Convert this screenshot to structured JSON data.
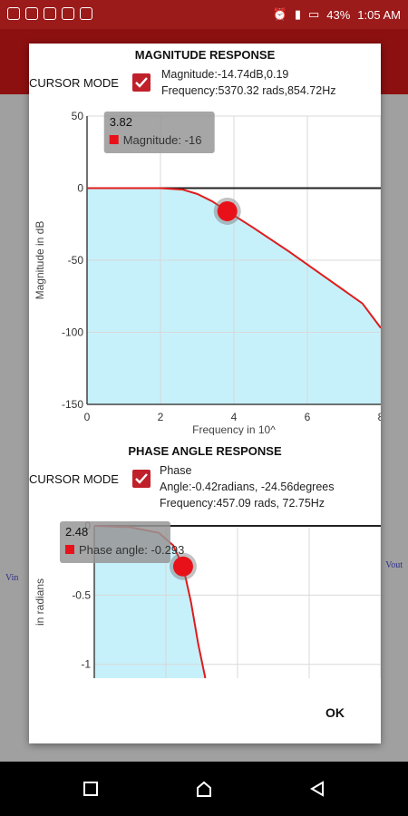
{
  "status_bar": {
    "battery": "43%",
    "time": "1:05 AM"
  },
  "dialog": {
    "magnitude": {
      "title": "MAGNITUDE RESPONSE",
      "cursor_mode_label": "CURSOR MODE",
      "cursor_mode_checked": true,
      "readout_line1": "Magnitude:-14.74dB,0.19",
      "readout_line2": "Frequency:5370.32 rads,854.72Hz",
      "tooltip_title": "3.82",
      "tooltip_value": "Magnitude: -16"
    },
    "phase": {
      "title": "PHASE ANGLE RESPONSE",
      "cursor_mode_label": "CURSOR MODE",
      "cursor_mode_checked": true,
      "readout_line1": "Phase",
      "readout_line2": "Angle:-0.42radians, -24.56degrees",
      "readout_line3": "Frequency:457.09 rads,  72.75Hz",
      "tooltip_title": "2.48",
      "tooltip_value": "Phase angle: -0.293"
    },
    "ok_label": "OK"
  },
  "background": {
    "vin_label": "Vin",
    "vout_label": "Vout"
  },
  "chart_data": [
    {
      "type": "area",
      "xlabel": "Frequency in 10^",
      "ylabel": "Magnitude in dB",
      "xlim": [
        0,
        8
      ],
      "ylim": [
        -150,
        50
      ],
      "xticks": [
        "0",
        "2",
        "4",
        "6",
        "8"
      ],
      "yticks": [
        "50",
        "0",
        "-50",
        "-100",
        "-150"
      ],
      "x": [
        0,
        1,
        2,
        2.6,
        3.0,
        3.4,
        3.82,
        4.5,
        5.5,
        6.5,
        7.5,
        8
      ],
      "values": [
        0,
        0,
        0,
        -1,
        -4,
        -9,
        -16,
        -27,
        -44,
        -62,
        -80,
        -97
      ],
      "cursor": {
        "x": 3.82,
        "y": -16
      },
      "series": [
        {
          "name": "Magnitude",
          "color": "#e01b1b",
          "fill": "#c6f1fb"
        }
      ]
    },
    {
      "type": "area",
      "ylabel": "in radians",
      "xlim": [
        0,
        8
      ],
      "ylim": [
        -1.1,
        0
      ],
      "yticks": [
        "0",
        "-0.5",
        "-1"
      ],
      "x": [
        0,
        1,
        1.8,
        2.2,
        2.48,
        2.7,
        2.9,
        3.1
      ],
      "values": [
        0,
        -0.01,
        -0.05,
        -0.14,
        -0.293,
        -0.55,
        -0.85,
        -1.1
      ],
      "cursor": {
        "x": 2.48,
        "y": -0.293
      },
      "series": [
        {
          "name": "Phase angle",
          "color": "#e01b1b",
          "fill": "#c6f1fb"
        }
      ]
    }
  ]
}
